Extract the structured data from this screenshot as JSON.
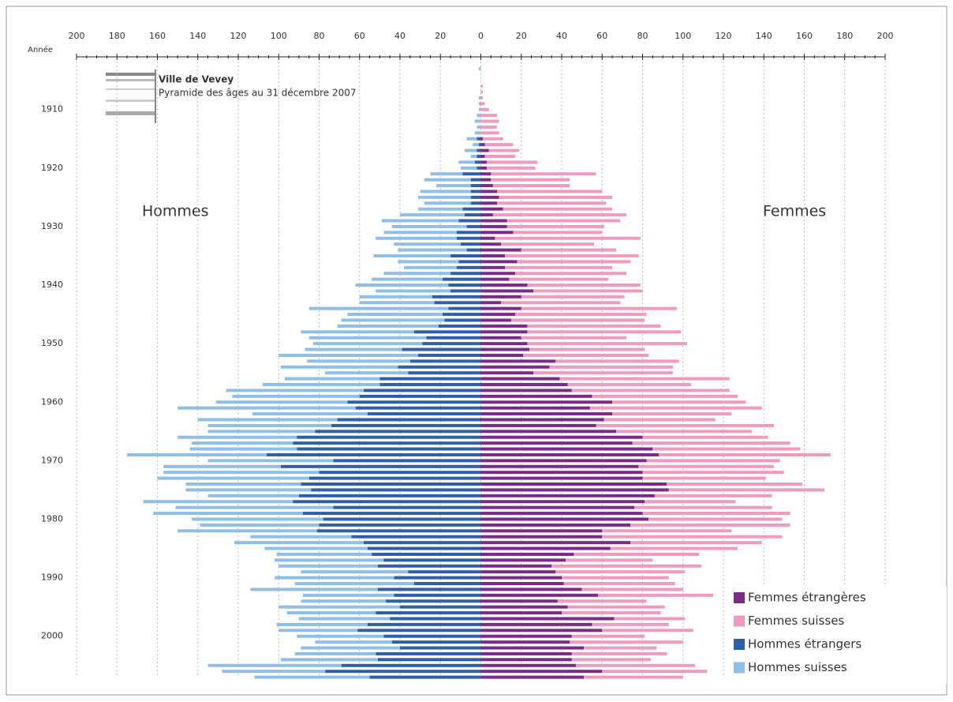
{
  "chart_data": {
    "type": "pyramid",
    "title": "Ville de Vevey",
    "subtitle": "Pyramide des âges au 31 décembre 2007",
    "y_label": "Année",
    "left_label": "Hommes",
    "right_label": "Femmes",
    "legend": "lower right",
    "grid": true,
    "xlim": [
      -200,
      200
    ],
    "xticks": [
      {
        "value": -200,
        "label": "200"
      },
      {
        "value": -180,
        "label": "180"
      },
      {
        "value": -160,
        "label": "160"
      },
      {
        "value": -140,
        "label": "140"
      },
      {
        "value": -120,
        "label": "120"
      },
      {
        "value": -100,
        "label": "100"
      },
      {
        "value": -80,
        "label": "80"
      },
      {
        "value": -60,
        "label": "60"
      },
      {
        "value": -40,
        "label": "40"
      },
      {
        "value": -20,
        "label": "20"
      },
      0,
      20,
      40,
      60,
      80,
      100,
      120,
      140,
      160,
      180,
      200
    ],
    "ylim": [
      1901,
      2008
    ],
    "yticks": [
      1910,
      1920,
      1930,
      1940,
      1950,
      1960,
      1970,
      1980,
      1990,
      2000
    ],
    "years": [
      1903,
      1904,
      1905,
      1906,
      1907,
      1908,
      1909,
      1910,
      1911,
      1912,
      1913,
      1914,
      1915,
      1916,
      1917,
      1918,
      1919,
      1920,
      1921,
      1922,
      1923,
      1924,
      1925,
      1926,
      1927,
      1928,
      1929,
      1930,
      1931,
      1932,
      1933,
      1934,
      1935,
      1936,
      1937,
      1938,
      1939,
      1940,
      1941,
      1942,
      1943,
      1944,
      1945,
      1946,
      1947,
      1948,
      1949,
      1950,
      1951,
      1952,
      1953,
      1954,
      1955,
      1956,
      1957,
      1958,
      1959,
      1960,
      1961,
      1962,
      1963,
      1964,
      1965,
      1966,
      1967,
      1968,
      1969,
      1970,
      1971,
      1972,
      1973,
      1974,
      1975,
      1976,
      1977,
      1978,
      1979,
      1980,
      1981,
      1982,
      1983,
      1984,
      1985,
      1986,
      1987,
      1988,
      1989,
      1990,
      1991,
      1992,
      1993,
      1994,
      1995,
      1996,
      1997,
      1998,
      1999,
      2000,
      2001,
      2002,
      2003,
      2004,
      2005,
      2006,
      2007
    ],
    "series": [
      {
        "name": "Femmes étrangères",
        "color": "#7b2a8a",
        "side": "right",
        "values": [
          0,
          0,
          0,
          0,
          0,
          0,
          0,
          0,
          0,
          0,
          0,
          0,
          1,
          2,
          4,
          2,
          3,
          3,
          5,
          5,
          6,
          8,
          9,
          8,
          11,
          6,
          13,
          13,
          16,
          7,
          10,
          20,
          12,
          18,
          12,
          17,
          14,
          23,
          26,
          20,
          10,
          20,
          17,
          15,
          23,
          23,
          20,
          23,
          24,
          21,
          37,
          34,
          26,
          39,
          43,
          45,
          55,
          65,
          54,
          65,
          61,
          57,
          67,
          80,
          75,
          85,
          88,
          82,
          78,
          80,
          80,
          92,
          93,
          86,
          81,
          76,
          80,
          83,
          74,
          60,
          60,
          74,
          64,
          46,
          42,
          35,
          37,
          40,
          41,
          50,
          58,
          38,
          43,
          40,
          66,
          55,
          60,
          45,
          44,
          51,
          45,
          45,
          47,
          60,
          51
        ]
      },
      {
        "name": "Femmes suisses",
        "color": "#f19ac0",
        "side": "right",
        "values": [
          0,
          0,
          0,
          1,
          1,
          1,
          2,
          4,
          8,
          9,
          8,
          9,
          10,
          14,
          15,
          15,
          25,
          24,
          52,
          39,
          38,
          52,
          56,
          54,
          54,
          66,
          56,
          48,
          44,
          72,
          46,
          47,
          66,
          56,
          53,
          55,
          49,
          56,
          54,
          51,
          59,
          77,
          65,
          66,
          66,
          76,
          52,
          79,
          57,
          62,
          61,
          61,
          69,
          84,
          61,
          78,
          72,
          66,
          85,
          59,
          55,
          88,
          67,
          62,
          78,
          73,
          85,
          66,
          67,
          70,
          61,
          67,
          77,
          58,
          45,
          68,
          73,
          66,
          79,
          64,
          89,
          65,
          63,
          62,
          43,
          74,
          64,
          53,
          55,
          50,
          57,
          44,
          48,
          49,
          35,
          38,
          45,
          36,
          56,
          36,
          47,
          39,
          59,
          52,
          49
        ]
      },
      {
        "name": "Hommes étrangers",
        "color": "#2f5fa8",
        "side": "left",
        "values": [
          0,
          0,
          0,
          0,
          0,
          0,
          0,
          0,
          0,
          0,
          0,
          0,
          2,
          1,
          2,
          2,
          3,
          2,
          9,
          5,
          5,
          5,
          5,
          5,
          9,
          8,
          11,
          7,
          12,
          12,
          10,
          7,
          15,
          11,
          12,
          15,
          19,
          16,
          15,
          24,
          23,
          16,
          19,
          18,
          21,
          33,
          27,
          29,
          39,
          31,
          35,
          41,
          36,
          50,
          50,
          58,
          60,
          66,
          62,
          56,
          71,
          74,
          82,
          91,
          93,
          91,
          106,
          73,
          99,
          80,
          85,
          89,
          84,
          90,
          93,
          73,
          88,
          78,
          80,
          81,
          64,
          58,
          56,
          54,
          48,
          51,
          36,
          43,
          33,
          51,
          43,
          47,
          40,
          52,
          45,
          56,
          61,
          48,
          44,
          40,
          52,
          51,
          69,
          77,
          55
        ]
      },
      {
        "name": "Hommes suisses",
        "color": "#8fbfe6",
        "side": "left",
        "values": [
          1,
          0,
          0,
          0,
          0,
          1,
          1,
          1,
          2,
          3,
          2,
          3,
          5,
          3,
          6,
          3,
          8,
          8,
          16,
          23,
          17,
          25,
          26,
          23,
          22,
          32,
          38,
          37,
          36,
          40,
          33,
          34,
          38,
          30,
          26,
          33,
          35,
          46,
          37,
          36,
          37,
          69,
          47,
          51,
          50,
          56,
          58,
          54,
          48,
          69,
          51,
          58,
          41,
          47,
          58,
          68,
          63,
          65,
          88,
          57,
          69,
          61,
          53,
          59,
          50,
          53,
          69,
          62,
          58,
          77,
          75,
          57,
          62,
          45,
          74,
          78,
          74,
          65,
          59,
          69,
          50,
          64,
          51,
          47,
          54,
          49,
          53,
          59,
          59,
          63,
          45,
          42,
          60,
          44,
          45,
          45,
          39,
          43,
          38,
          49,
          40,
          48,
          66,
          51,
          57
        ]
      }
    ]
  }
}
